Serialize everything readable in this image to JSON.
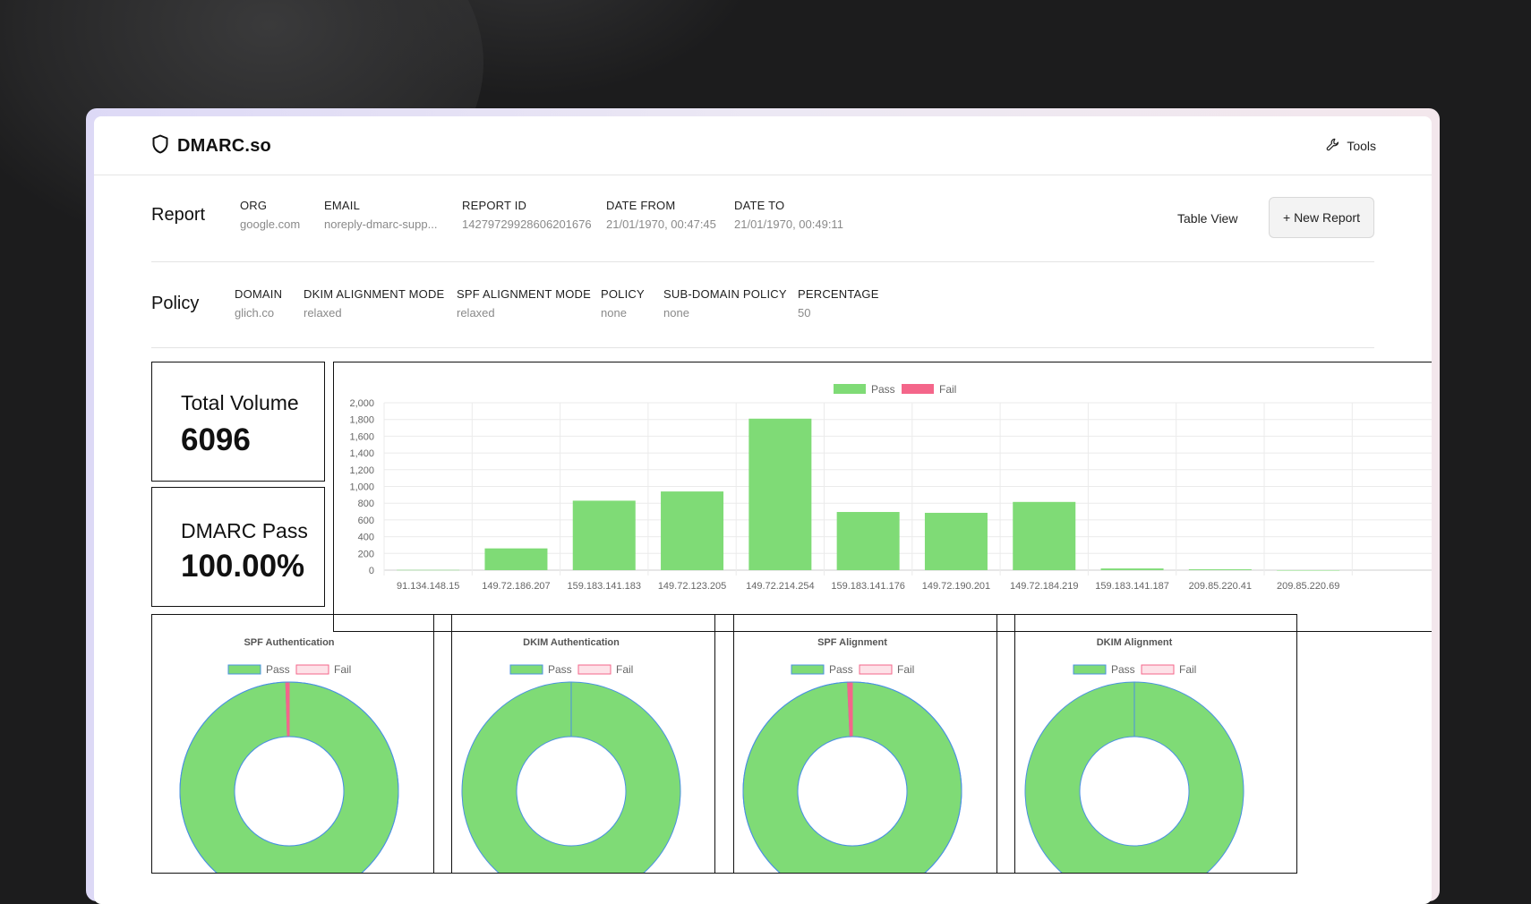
{
  "app": {
    "brand": "DMARC.so",
    "tools_label": "Tools"
  },
  "report": {
    "title": "Report",
    "fields": [
      {
        "label": "ORG",
        "value": "google.com"
      },
      {
        "label": "EMAIL",
        "value": "noreply-dmarc-supp..."
      },
      {
        "label": "REPORT ID",
        "value": "14279729928606201676"
      },
      {
        "label": "DATE FROM",
        "value": "21/01/1970, 00:47:45"
      },
      {
        "label": "DATE TO",
        "value": "21/01/1970, 00:49:11"
      }
    ],
    "table_view_label": "Table View",
    "new_report_label": "+ New Report"
  },
  "policy": {
    "title": "Policy",
    "fields": [
      {
        "label": "DOMAIN",
        "value": "glich.co"
      },
      {
        "label": "DKIM ALIGNMENT MODE",
        "value": "relaxed"
      },
      {
        "label": "SPF ALIGNMENT MODE",
        "value": "relaxed"
      },
      {
        "label": "POLICY",
        "value": "none"
      },
      {
        "label": "SUB-DOMAIN POLICY",
        "value": "none"
      },
      {
        "label": "PERCENTAGE",
        "value": "50"
      }
    ]
  },
  "stats": {
    "total_volume_label": "Total Volume",
    "total_volume_value": "6096",
    "dmarc_pass_label": "DMARC Pass",
    "dmarc_pass_value": "100.00%"
  },
  "colors": {
    "pass": "#7fdb76",
    "fail": "#f4668a",
    "fail_light": "#fde2e8",
    "border_blue": "#4a90e2"
  },
  "chart_data": [
    {
      "type": "bar",
      "categories": [
        "91.134.148.15",
        "149.72.186.207",
        "159.183.141.183",
        "149.72.123.205",
        "149.72.214.254",
        "159.183.141.176",
        "149.72.190.201",
        "149.72.184.219",
        "159.183.141.187",
        "209.85.220.41",
        "209.85.220.69"
      ],
      "series": [
        {
          "name": "Pass",
          "values": [
            3,
            260,
            830,
            940,
            1810,
            695,
            685,
            815,
            20,
            10,
            0
          ]
        },
        {
          "name": "Fail",
          "values": [
            0,
            0,
            0,
            0,
            0,
            0,
            0,
            0,
            0,
            0,
            0
          ]
        }
      ],
      "yticks": [
        "0",
        "200",
        "400",
        "600",
        "800",
        "1,000",
        "1,200",
        "1,400",
        "1,600",
        "1,800",
        "2,000"
      ],
      "ylim": [
        0,
        2000
      ],
      "legend": "top",
      "grid": true
    },
    {
      "type": "pie",
      "title": "SPF Authentication",
      "labels": [
        "Pass",
        "Fail"
      ],
      "values": [
        99.5,
        0.5
      ]
    },
    {
      "type": "pie",
      "title": "DKIM Authentication",
      "labels": [
        "Pass",
        "Fail"
      ],
      "values": [
        100,
        0
      ]
    },
    {
      "type": "pie",
      "title": "SPF Alignment",
      "labels": [
        "Pass",
        "Fail"
      ],
      "values": [
        99.3,
        0.7
      ]
    },
    {
      "type": "pie",
      "title": "DKIM Alignment",
      "labels": [
        "Pass",
        "Fail"
      ],
      "values": [
        100,
        0
      ]
    }
  ]
}
